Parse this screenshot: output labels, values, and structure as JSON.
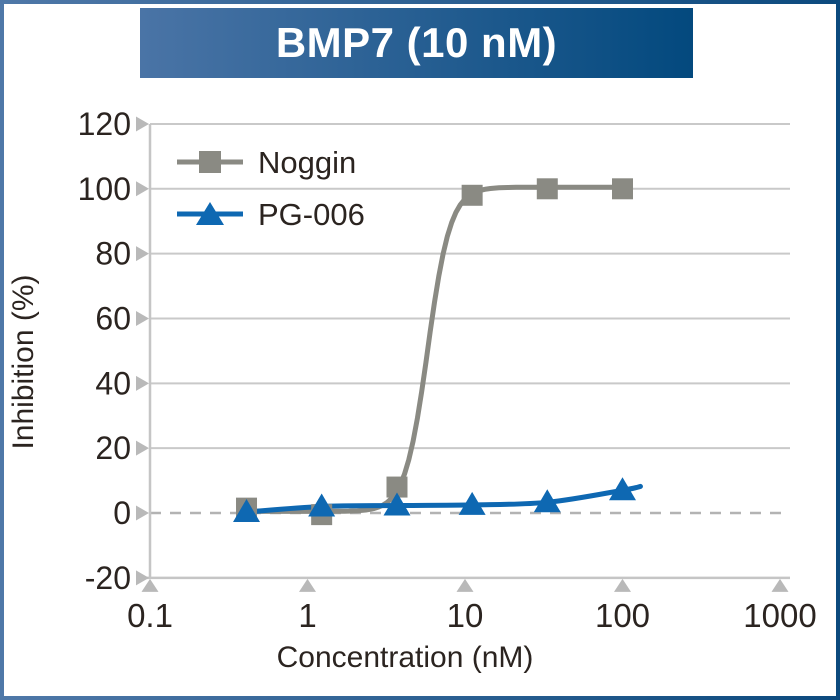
{
  "frame": {
    "border_gradient": [
      "#4f78a8",
      "#0c4a7e"
    ]
  },
  "banner": {
    "title": "BMP7 (10 nM)",
    "gradient": [
      "#4a74a6",
      "#03497e"
    ],
    "text_color": "#ffffff"
  },
  "chart_data": {
    "type": "line",
    "title": "BMP7 (10 nM)",
    "xlabel": "Concentration (nM)",
    "ylabel": "Inhibition (%)",
    "x_scale": "log",
    "xlim": [
      0.1,
      1000
    ],
    "ylim": [
      -20,
      120
    ],
    "xticks": [
      0.1,
      1,
      10,
      100,
      1000
    ],
    "xtick_labels": [
      "0.1",
      "1",
      "10",
      "100",
      "1000"
    ],
    "yticks": [
      -20,
      0,
      20,
      40,
      60,
      80,
      100,
      120
    ],
    "grid": "horizontal",
    "zero_line_style": "dashed",
    "legend_position": "top-left",
    "series": [
      {
        "name": "Noggin",
        "marker": "square",
        "color": "#8a8a83",
        "points": [
          [
            0.41,
            1.5
          ],
          [
            1.23,
            -0.5
          ],
          [
            3.7,
            8
          ],
          [
            11.1,
            98
          ],
          [
            33.3,
            100
          ],
          [
            100,
            100
          ]
        ],
        "fit_4pl": {
          "bottom": 0.5,
          "top": 100.5,
          "ec50": 5.8,
          "hill": 6,
          "draw_range": [
            0.38,
            108
          ]
        }
      },
      {
        "name": "PG-006",
        "marker": "triangle",
        "color": "#0e68b2",
        "points": [
          [
            0.41,
            0.3
          ],
          [
            1.23,
            2
          ],
          [
            3.7,
            2.3
          ],
          [
            11.1,
            2.5
          ],
          [
            33.3,
            3.3
          ],
          [
            100,
            7
          ]
        ],
        "curve": "spline",
        "extend_to": [
          130,
          8.2
        ]
      }
    ],
    "styles": {
      "grid_color": "#c9c9c9",
      "axis_color": "#c5c5c5",
      "tick_arrow_color": "#b9b9b9",
      "zero_line_color": "#b3b3b3",
      "text_color": "#2b2420"
    }
  }
}
